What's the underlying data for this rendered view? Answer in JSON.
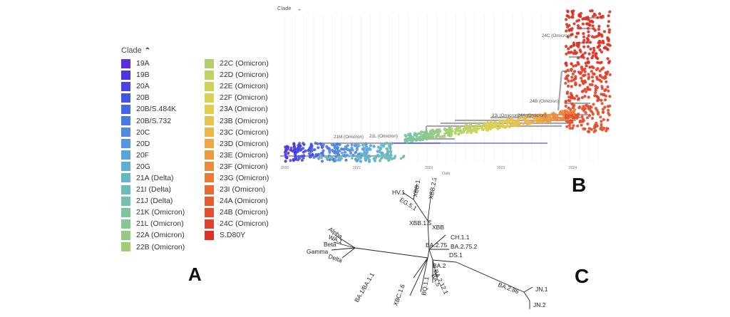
{
  "panels": {
    "a": "A",
    "b": "B",
    "c": "C"
  },
  "legend": {
    "title": "Clade",
    "toggle_icon": "chevron-up-icon",
    "items": [
      {
        "label": "19A",
        "color": "#5b2fd6"
      },
      {
        "label": "19B",
        "color": "#4e34de"
      },
      {
        "label": "20A",
        "color": "#4a45e0"
      },
      {
        "label": "20B",
        "color": "#4553e2"
      },
      {
        "label": "20B/S.484K",
        "color": "#4565e2"
      },
      {
        "label": "20B/S.732",
        "color": "#4b78e0"
      },
      {
        "label": "20C",
        "color": "#5189de"
      },
      {
        "label": "20D",
        "color": "#5596dc"
      },
      {
        "label": "20F",
        "color": "#5aa4d9"
      },
      {
        "label": "20G",
        "color": "#60aed2"
      },
      {
        "label": "21A (Delta)",
        "color": "#66b6c8"
      },
      {
        "label": "21I (Delta)",
        "color": "#6cbcbc"
      },
      {
        "label": "21J (Delta)",
        "color": "#74c0ae"
      },
      {
        "label": "21K (Omicron)",
        "color": "#7dc4a0"
      },
      {
        "label": "21L (Omicron)",
        "color": "#88c794"
      },
      {
        "label": "22A (Omicron)",
        "color": "#94ca86"
      },
      {
        "label": "22B (Omicron)",
        "color": "#a2cd78"
      },
      {
        "label": "22C (Omicron)",
        "color": "#b0d06c"
      },
      {
        "label": "22D (Omicron)",
        "color": "#bfd262"
      },
      {
        "label": "22E (Omicron)",
        "color": "#cdd35a"
      },
      {
        "label": "22F (Omicron)",
        "color": "#d9d254"
      },
      {
        "label": "23A (Omicron)",
        "color": "#e3cd4f"
      },
      {
        "label": "23B (Omicron)",
        "color": "#e8c34b"
      },
      {
        "label": "23C (Omicron)",
        "color": "#ebb747"
      },
      {
        "label": "23D (Omicron)",
        "color": "#eca943"
      },
      {
        "label": "23E (Omicron)",
        "color": "#ec9a3f"
      },
      {
        "label": "23F (Omicron)",
        "color": "#eb8b3b"
      },
      {
        "label": "23G (Omicron)",
        "color": "#ea7b37"
      },
      {
        "label": "23I (Omicron)",
        "color": "#e86b33"
      },
      {
        "label": "24A (Omicron)",
        "color": "#e65c30"
      },
      {
        "label": "24B (Omicron)",
        "color": "#e44e2d"
      },
      {
        "label": "24C (Omicron)",
        "color": "#e2422b"
      },
      {
        "label": "S.D80Y",
        "color": "#dc3225"
      }
    ]
  },
  "tree": {
    "header": "Clade",
    "header_icon": "chevron-down-icon",
    "x_axis_label": "Date",
    "x_ticks": [
      "2020",
      "2021",
      "2022",
      "2023",
      "2024"
    ],
    "clade_labels": [
      "21M (Omicron)",
      "21L (Omicron)",
      "23I (Omicron)",
      "24A (Omicron)",
      "24B (Omicron)",
      "24C (Omicron)"
    ],
    "branch_color": "#a8a8a8"
  },
  "unrooted": {
    "labels": [
      "HV.1",
      "EG.5.1",
      "XBB.1.16",
      "XBB.2.3",
      "XBB.1.5",
      "XBB",
      "CH.1.1",
      "BA.2.75",
      "BA.2.75.2",
      "DS.1",
      "BA.2",
      "BA.2.12.1",
      "BA.5",
      "BQ.1.1",
      "XBC.1.6",
      "BA.1/BA.1.1",
      "Alpha",
      "WA.1",
      "Beta",
      "Gamma",
      "Delta",
      "BA.2.86",
      "JN.1",
      "JN.2"
    ]
  }
}
